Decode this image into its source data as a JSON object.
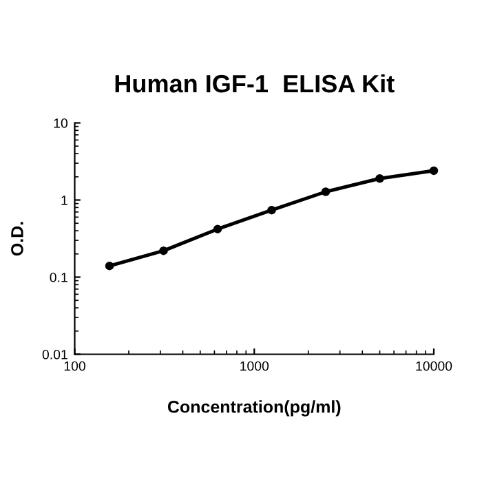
{
  "chart_data": {
    "type": "line",
    "title": "Human IGF-1  ELISA Kit",
    "xlabel": "Concentration(pg/ml)",
    "ylabel": "O.D.",
    "x": [
      156.25,
      312.5,
      625,
      1250,
      2500,
      5000,
      10000
    ],
    "series": [
      {
        "color": "#000000",
        "values": [
          0.14,
          0.22,
          0.42,
          0.74,
          1.28,
          1.9,
          2.4
        ]
      }
    ],
    "log": "xy",
    "xlim": [
      100,
      10000
    ],
    "ylim": [
      0.01,
      10
    ],
    "xticks": [
      100,
      1000,
      10000
    ],
    "yticks": [
      0.01,
      0.1,
      1,
      10
    ],
    "marker": "circle",
    "line_style": "solid",
    "grid": false
  }
}
